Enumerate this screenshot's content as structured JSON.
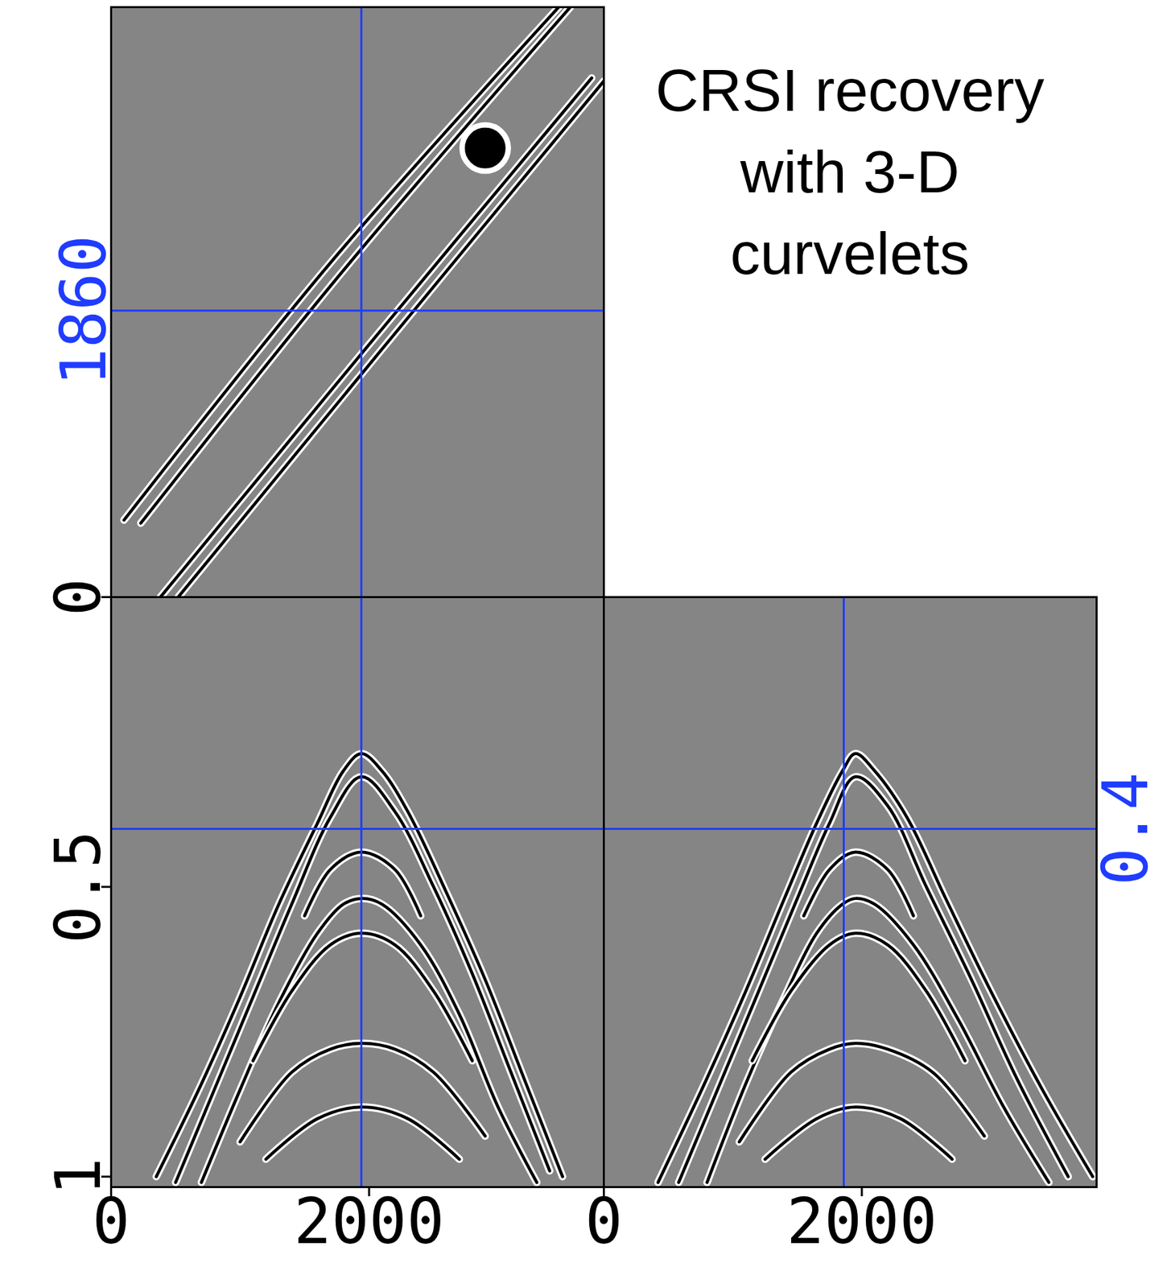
{
  "title": "CRSI recovery with 3-D curvelets",
  "chart_data": [
    {
      "type": "line",
      "xlim": [
        0,
        3820
      ],
      "ylim": [
        0,
        3830
      ],
      "yticks": [
        1860
      ],
      "tick_labels": "y",
      "crosshairs": {
        "x": 1940,
        "y": 1860,
        "color": "#1f3cff"
      },
      "series": [
        {
          "color": "#000000",
          "x": [
            100,
            1700,
            3470
          ],
          "values": [
            500,
            2170,
            3830
          ]
        },
        {
          "color": "#000000",
          "x": [
            230,
            1820,
            3560
          ],
          "values": [
            480,
            2140,
            3830
          ]
        },
        {
          "color": "#000000",
          "x": [
            382,
            2000,
            3726
          ],
          "values": [
            0,
            1640,
            3370
          ]
        },
        {
          "color": "#000000",
          "x": [
            520,
            2120,
            3820
          ],
          "values": [
            0,
            1630,
            3350
          ]
        },
        {
          "type": "scatter",
          "marker": "circle",
          "color": "#000000",
          "x": [
            2900
          ],
          "values": [
            2915
          ]
        }
      ]
    },
    {
      "type": "line",
      "xlim": [
        0,
        3820
      ],
      "ylim": [
        1.018,
        0
      ],
      "xticks": [
        0,
        2000
      ],
      "yticks": [
        0,
        0.5,
        1
      ],
      "crosshairs": {
        "x": 1940,
        "y": 0.4,
        "color": "#1f3cff"
      },
      "series": [
        {
          "color": "#000000",
          "x": [
            350,
            700,
            1000,
            1300,
            1600,
            1800,
            1940,
            2100,
            2300,
            2600,
            2900,
            3200,
            3500
          ],
          "values": [
            1.0,
            0.84,
            0.69,
            0.53,
            0.39,
            0.3,
            0.27,
            0.3,
            0.37,
            0.51,
            0.66,
            0.83,
            1.0
          ]
        },
        {
          "color": "#000000",
          "x": [
            500,
            800,
            1100,
            1400,
            1700,
            1940,
            2200,
            2500,
            2800,
            3100,
            3400
          ],
          "values": [
            1.01,
            0.85,
            0.69,
            0.53,
            0.38,
            0.31,
            0.37,
            0.5,
            0.65,
            0.82,
            0.99
          ]
        },
        {
          "color": "#000000",
          "x": [
            1500,
            1700,
            1940,
            2200,
            2400
          ],
          "values": [
            0.55,
            0.47,
            0.44,
            0.47,
            0.55
          ]
        },
        {
          "color": "#000000",
          "x": [
            700,
            1000,
            1300,
            1600,
            1800,
            1940,
            2100,
            2400,
            2700,
            3000,
            3300
          ],
          "values": [
            1.01,
            0.85,
            0.7,
            0.58,
            0.53,
            0.52,
            0.53,
            0.6,
            0.72,
            0.88,
            1.01
          ]
        },
        {
          "color": "#000000",
          "x": [
            1100,
            1400,
            1700,
            1940,
            2200,
            2500,
            2800
          ],
          "values": [
            0.8,
            0.68,
            0.6,
            0.58,
            0.6,
            0.68,
            0.8
          ]
        },
        {
          "color": "#000000",
          "x": [
            1000,
            1400,
            1700,
            1940,
            2200,
            2500,
            2900
          ],
          "values": [
            0.94,
            0.82,
            0.78,
            0.77,
            0.78,
            0.82,
            0.93
          ]
        },
        {
          "color": "#000000",
          "x": [
            1200,
            1600,
            1940,
            2300,
            2700
          ],
          "values": [
            0.97,
            0.9,
            0.88,
            0.9,
            0.97
          ]
        }
      ]
    },
    {
      "type": "line",
      "xlim": [
        0,
        3820
      ],
      "y2lim": [
        1.018,
        0
      ],
      "xticks": [
        0,
        2000
      ],
      "y2ticks": [
        0.4
      ],
      "crosshairs": {
        "x": 1860,
        "y": 0.4,
        "color": "#1f3cff"
      },
      "series": [
        {
          "axis": "y2",
          "color": "#000000",
          "x": [
            420,
            800,
            1100,
            1400,
            1650,
            1850,
            1950,
            2100,
            2350,
            2650,
            3000,
            3400,
            3790
          ],
          "values": [
            1.01,
            0.83,
            0.68,
            0.52,
            0.39,
            0.3,
            0.27,
            0.3,
            0.38,
            0.52,
            0.68,
            0.85,
            1.0
          ]
        },
        {
          "axis": "y2",
          "color": "#000000",
          "x": [
            580,
            900,
            1200,
            1500,
            1750,
            1950,
            2200,
            2500,
            2850,
            3200,
            3600
          ],
          "values": [
            1.01,
            0.84,
            0.68,
            0.52,
            0.39,
            0.31,
            0.36,
            0.5,
            0.66,
            0.83,
            1.0
          ]
        },
        {
          "axis": "y2",
          "color": "#000000",
          "x": [
            1550,
            1750,
            1950,
            2200,
            2400
          ],
          "values": [
            0.55,
            0.47,
            0.44,
            0.47,
            0.55
          ]
        },
        {
          "axis": "y2",
          "color": "#000000",
          "x": [
            800,
            1100,
            1400,
            1650,
            1850,
            1950,
            2100,
            2400,
            2750,
            3100,
            3450
          ],
          "values": [
            1.01,
            0.84,
            0.69,
            0.58,
            0.53,
            0.52,
            0.53,
            0.6,
            0.73,
            0.88,
            1.01
          ]
        },
        {
          "axis": "y2",
          "color": "#000000",
          "x": [
            1150,
            1450,
            1750,
            1950,
            2200,
            2500,
            2800
          ],
          "values": [
            0.8,
            0.68,
            0.6,
            0.58,
            0.6,
            0.68,
            0.8
          ]
        },
        {
          "axis": "y2",
          "color": "#000000",
          "x": [
            1050,
            1450,
            1750,
            1950,
            2200,
            2550,
            2950
          ],
          "values": [
            0.94,
            0.82,
            0.78,
            0.77,
            0.78,
            0.82,
            0.93
          ]
        },
        {
          "axis": "y2",
          "color": "#000000",
          "x": [
            1250,
            1650,
            1950,
            2300,
            2700
          ],
          "values": [
            0.97,
            0.9,
            0.88,
            0.9,
            0.97
          ]
        }
      ]
    }
  ]
}
